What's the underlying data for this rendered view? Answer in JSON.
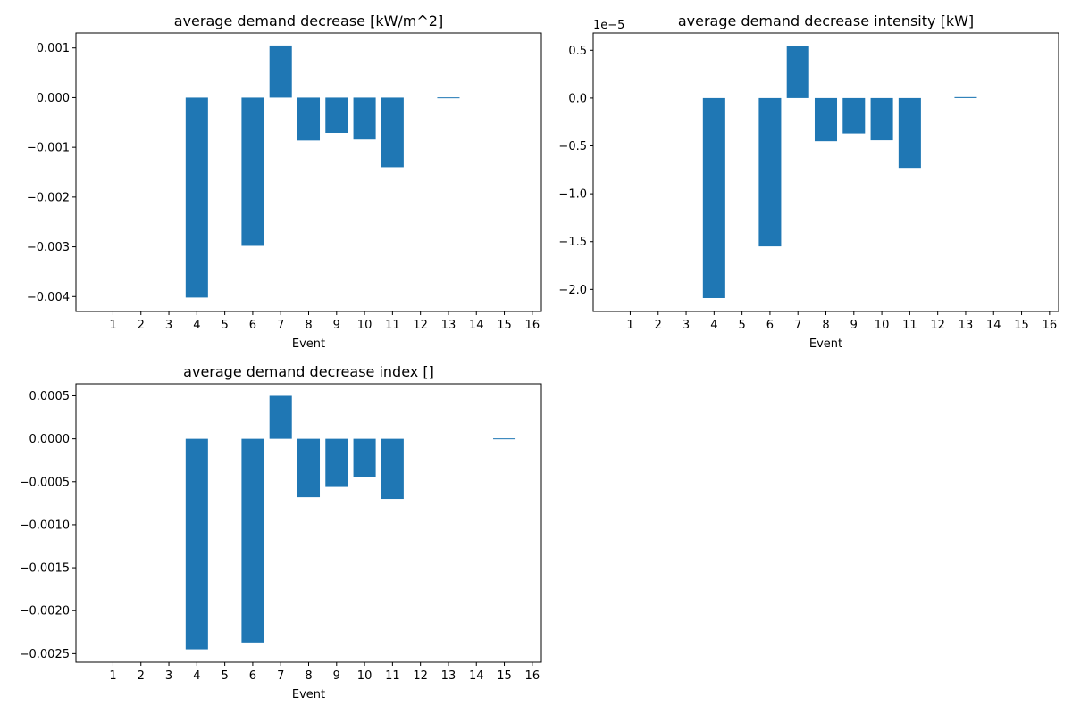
{
  "chart_data": [
    {
      "type": "bar",
      "title": "average demand decrease [kW/m^2]",
      "xlabel": "Event",
      "ylabel": "",
      "categories": [
        "1",
        "2",
        "3",
        "4",
        "5",
        "6",
        "7",
        "8",
        "9",
        "10",
        "11",
        "12",
        "13",
        "14",
        "15",
        "16"
      ],
      "values": [
        0,
        0,
        0,
        -0.00402,
        0,
        -0.00298,
        0.00105,
        -0.00086,
        -0.00071,
        -0.00084,
        -0.0014,
        0,
        5e-06,
        0,
        0,
        0
      ],
      "ylim": [
        -0.0043,
        0.0013
      ],
      "yticks": [
        0.001,
        0.0,
        -0.001,
        -0.002,
        -0.003,
        -0.004
      ],
      "ytick_labels": [
        "0.001",
        "0.000",
        "−0.001",
        "−0.002",
        "−0.003",
        "−0.004"
      ],
      "offset_text": "",
      "color": "#1f77b4",
      "grid": false
    },
    {
      "type": "bar",
      "title": "average demand decrease intensity [kW]",
      "xlabel": "Event",
      "ylabel": "",
      "categories": [
        "1",
        "2",
        "3",
        "4",
        "5",
        "6",
        "7",
        "8",
        "9",
        "10",
        "11",
        "12",
        "13",
        "14",
        "15",
        "16"
      ],
      "values": [
        0,
        0,
        0,
        -2.09e-05,
        0,
        -1.55e-05,
        5.4e-06,
        -4.5e-06,
        -3.7e-06,
        -4.4e-06,
        -7.3e-06,
        0,
        1e-07,
        0,
        0,
        0
      ],
      "ylim": [
        -2.23e-05,
        6.8e-06
      ],
      "yticks": [
        5e-06,
        0.0,
        -5e-06,
        -1e-05,
        -1.5e-05,
        -2e-05
      ],
      "ytick_labels": [
        "0.5",
        "0.0",
        "−0.5",
        "−1.0",
        "−1.5",
        "−2.0"
      ],
      "offset_text": "1e−5",
      "color": "#1f77b4",
      "grid": false
    },
    {
      "type": "bar",
      "title": "average demand decrease index []",
      "xlabel": "Event",
      "ylabel": "",
      "categories": [
        "1",
        "2",
        "3",
        "4",
        "5",
        "6",
        "7",
        "8",
        "9",
        "10",
        "11",
        "12",
        "13",
        "14",
        "15",
        "16"
      ],
      "values": [
        0,
        0,
        0,
        -0.00245,
        0,
        -0.00237,
        0.0005,
        -0.00068,
        -0.00056,
        -0.00044,
        -0.0007,
        0,
        0,
        0,
        5e-06,
        0
      ],
      "ylim": [
        -0.0026,
        0.00064
      ],
      "yticks": [
        0.0005,
        0.0,
        -0.0005,
        -0.001,
        -0.0015,
        -0.002,
        -0.0025
      ],
      "ytick_labels": [
        "0.0005",
        "0.0000",
        "−0.0005",
        "−0.0010",
        "−0.0015",
        "−0.0020",
        "−0.0025"
      ],
      "offset_text": "",
      "color": "#1f77b4",
      "grid": false
    }
  ]
}
